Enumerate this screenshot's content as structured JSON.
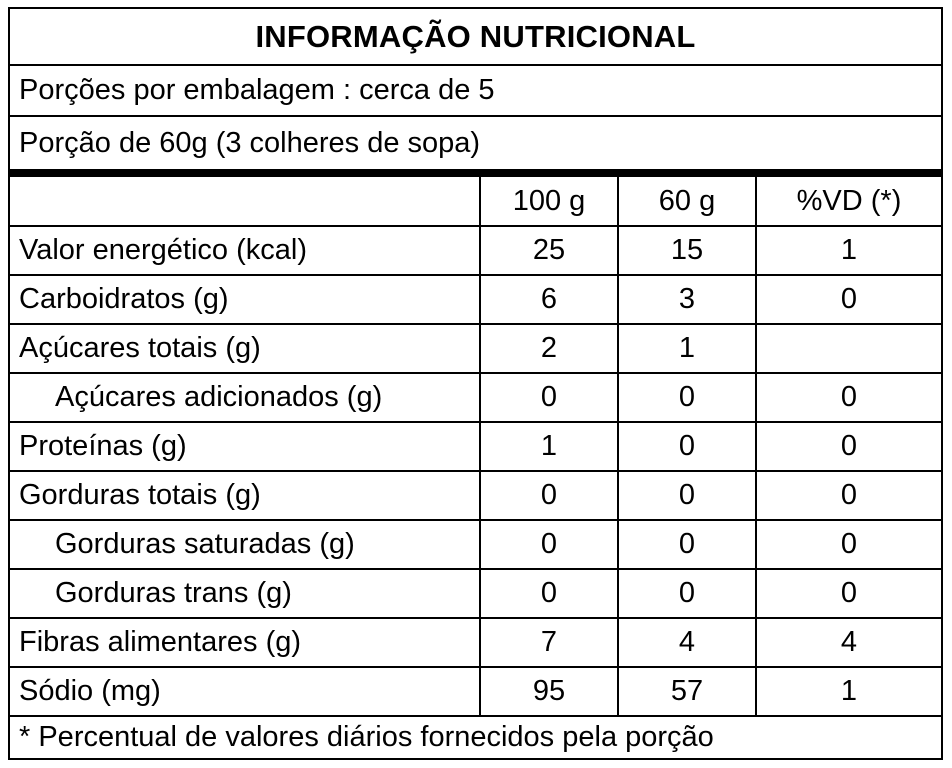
{
  "title": "INFORMAÇÃO NUTRICIONAL",
  "servings_per_package": "Porções por embalagem : cerca de 5",
  "serving_size": "Porção de 60g (3 colheres de sopa)",
  "columns": {
    "label": "",
    "per_100g": "100 g",
    "per_60g": "60 g",
    "daily_value": "%VD (*)"
  },
  "rows": [
    {
      "label": "Valor energético (kcal)",
      "per_100g": "25",
      "per_60g": "15",
      "daily_value": "1"
    },
    {
      "label": "Carboidratos (g)",
      "per_100g": "6",
      "per_60g": "3",
      "daily_value": "0"
    },
    {
      "label": "Açúcares totais (g)",
      "per_100g": "2",
      "per_60g": "1",
      "daily_value": ""
    },
    {
      "label": "Açúcares adicionados (g)",
      "per_100g": "0",
      "per_60g": "0",
      "daily_value": "0"
    },
    {
      "label": "Proteínas (g)",
      "per_100g": "1",
      "per_60g": "0",
      "daily_value": "0"
    },
    {
      "label": "Gorduras totais (g)",
      "per_100g": "0",
      "per_60g": "0",
      "daily_value": "0"
    },
    {
      "label": "Gorduras saturadas (g)",
      "per_100g": "0",
      "per_60g": "0",
      "daily_value": "0"
    },
    {
      "label": "Gorduras trans (g)",
      "per_100g": "0",
      "per_60g": "0",
      "daily_value": "0"
    },
    {
      "label": "Fibras alimentares (g)",
      "per_100g": "7",
      "per_60g": "4",
      "daily_value": "4"
    },
    {
      "label": "Sódio (mg)",
      "per_100g": "95",
      "per_60g": "57",
      "daily_value": "1"
    }
  ],
  "footnote": "* Percentual de valores diários fornecidos pela porção"
}
